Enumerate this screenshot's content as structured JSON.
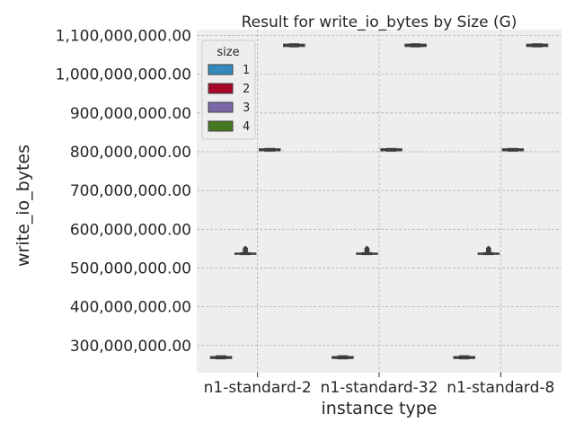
{
  "chart_data": {
    "type": "box",
    "title": "Result for write_io_bytes by Size (G)",
    "xlabel": "instance type",
    "ylabel": "write_io_bytes",
    "categories": [
      "n1-standard-2",
      "n1-standard-32",
      "n1-standard-8"
    ],
    "ylim": [
      230000000,
      1115000000
    ],
    "yticks": [
      300000000,
      400000000,
      500000000,
      600000000,
      700000000,
      800000000,
      900000000,
      1000000000,
      1100000000
    ],
    "ytick_labels": [
      "300,000,000.00",
      "400,000,000.00",
      "500,000,000.00",
      "600,000,000.00",
      "700,000,000.00",
      "800,000,000.00",
      "900,000,000.00",
      "1,000,000,000.00",
      "1,100,000,000.00"
    ],
    "grid": true,
    "legend": {
      "title": "size",
      "placement": "top-left"
    },
    "series": [
      {
        "name": "1",
        "color": "#348abd",
        "values": [
          {
            "q1": 267000000,
            "median": 269000000,
            "q3": 271000000,
            "whislo": 266000000,
            "whishi": 273000000,
            "fliers": []
          },
          {
            "q1": 267000000,
            "median": 269000000,
            "q3": 271000000,
            "whislo": 266000000,
            "whishi": 273000000,
            "fliers": []
          },
          {
            "q1": 267000000,
            "median": 269000000,
            "q3": 271000000,
            "whislo": 266000000,
            "whishi": 273000000,
            "fliers": []
          }
        ]
      },
      {
        "name": "2",
        "color": "#a60628",
        "values": [
          {
            "q1": 536000000,
            "median": 537000000,
            "q3": 538000000,
            "whislo": 535000000,
            "whishi": 539000000,
            "fliers": [
              541000000,
              543000000,
              545000000,
              547000000,
              549000000,
              551000000
            ]
          },
          {
            "q1": 536000000,
            "median": 537000000,
            "q3": 538000000,
            "whislo": 535000000,
            "whishi": 539000000,
            "fliers": [
              541000000,
              543000000,
              545000000,
              547000000,
              549000000,
              551000000
            ]
          },
          {
            "q1": 536000000,
            "median": 537000000,
            "q3": 538000000,
            "whislo": 535000000,
            "whishi": 539000000,
            "fliers": [
              541000000,
              543000000,
              545000000,
              547000000,
              549000000,
              551000000
            ]
          }
        ]
      },
      {
        "name": "3",
        "color": "#7a68a6",
        "values": [
          {
            "q1": 803000000,
            "median": 805000000,
            "q3": 807000000,
            "whislo": 802000000,
            "whishi": 808000000,
            "fliers": []
          },
          {
            "q1": 803000000,
            "median": 805000000,
            "q3": 807000000,
            "whislo": 802000000,
            "whishi": 808000000,
            "fliers": []
          },
          {
            "q1": 803000000,
            "median": 805000000,
            "q3": 807000000,
            "whislo": 802000000,
            "whishi": 808000000,
            "fliers": []
          }
        ]
      },
      {
        "name": "4",
        "color": "#467821",
        "values": [
          {
            "q1": 1072000000,
            "median": 1074000000,
            "q3": 1077000000,
            "whislo": 1071000000,
            "whishi": 1078000000,
            "fliers": []
          },
          {
            "q1": 1072000000,
            "median": 1074000000,
            "q3": 1077000000,
            "whislo": 1071000000,
            "whishi": 1078000000,
            "fliers": []
          },
          {
            "q1": 1072000000,
            "median": 1074000000,
            "q3": 1077000000,
            "whislo": 1071000000,
            "whishi": 1078000000,
            "fliers": []
          }
        ]
      }
    ]
  }
}
